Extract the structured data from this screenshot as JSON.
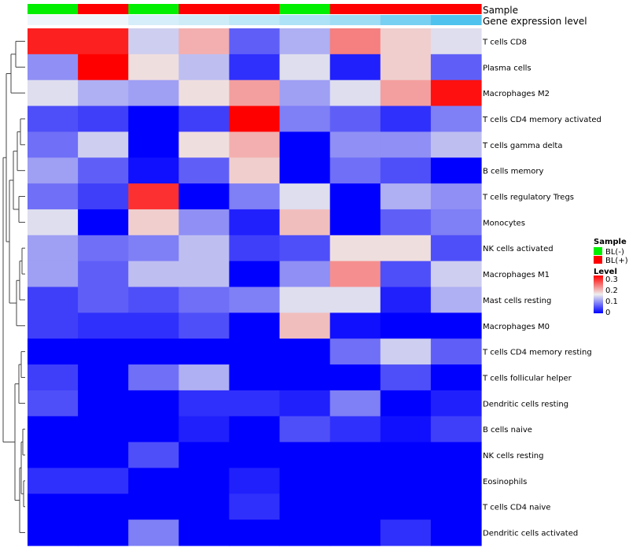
{
  "chart_data": {
    "type": "heatmap",
    "annotation_tracks": [
      "Sample",
      "Gene expression level"
    ],
    "sample_groups": [
      "BL(-)",
      "BL(+)",
      "BL(-)",
      "BL(+)",
      "BL(+)",
      "BL(-)",
      "BL(+)",
      "BL(+)",
      "BL(+)"
    ],
    "expression_level_track": [
      0.0,
      0.0,
      0.15,
      0.2,
      0.3,
      0.4,
      0.5,
      0.75,
      1.0
    ],
    "rows": [
      "T cells CD8",
      "Plasma cells",
      "Macrophages M2",
      "T cells CD4 memory activated",
      "T cells gamma delta",
      "B cells memory",
      "T cells regulatory  Tregs",
      "Monocytes",
      "NK cells activated",
      "Macrophages M1",
      "Mast cells resting",
      "Macrophages M0",
      "T cells CD4 memory resting",
      "T cells follicular helper",
      "Dendritic cells resting",
      "B cells naive",
      "NK cells resting",
      "Eosinophils",
      "T cells CD4 naive",
      "Dendritic cells activated"
    ],
    "values": [
      [
        0.28,
        0.28,
        0.13,
        0.19,
        0.06,
        0.11,
        0.22,
        0.17,
        0.14
      ],
      [
        0.09,
        0.3,
        0.16,
        0.12,
        0.03,
        0.14,
        0.02,
        0.17,
        0.06
      ],
      [
        0.14,
        0.11,
        0.1,
        0.16,
        0.2,
        0.1,
        0.14,
        0.2,
        0.29
      ],
      [
        0.05,
        0.04,
        0.0,
        0.04,
        0.3,
        0.08,
        0.06,
        0.03,
        0.08
      ],
      [
        0.07,
        0.13,
        0.0,
        0.16,
        0.19,
        0.0,
        0.09,
        0.09,
        0.12
      ],
      [
        0.1,
        0.06,
        0.01,
        0.06,
        0.17,
        0.0,
        0.07,
        0.05,
        0.0
      ],
      [
        0.07,
        0.04,
        0.27,
        0.0,
        0.08,
        0.14,
        0.0,
        0.11,
        0.09
      ],
      [
        0.14,
        0.0,
        0.17,
        0.09,
        0.02,
        0.18,
        0.0,
        0.06,
        0.08
      ],
      [
        0.1,
        0.07,
        0.08,
        0.12,
        0.04,
        0.05,
        0.16,
        0.16,
        0.05
      ],
      [
        0.1,
        0.06,
        0.12,
        0.12,
        0.0,
        0.09,
        0.21,
        0.05,
        0.13
      ],
      [
        0.04,
        0.06,
        0.05,
        0.07,
        0.08,
        0.14,
        0.14,
        0.02,
        0.11
      ],
      [
        0.04,
        0.03,
        0.03,
        0.05,
        0.0,
        0.18,
        0.01,
        0.0,
        0.0
      ],
      [
        0.0,
        0.0,
        0.0,
        0.0,
        0.0,
        0.0,
        0.07,
        0.13,
        0.06
      ],
      [
        0.04,
        0.0,
        0.07,
        0.11,
        0.0,
        0.0,
        0.0,
        0.05,
        0.0
      ],
      [
        0.05,
        0.0,
        0.0,
        0.03,
        0.03,
        0.02,
        0.08,
        0.0,
        0.02
      ],
      [
        0.0,
        0.0,
        0.0,
        0.02,
        0.0,
        0.05,
        0.03,
        0.01,
        0.04
      ],
      [
        0.0,
        0.0,
        0.05,
        0.0,
        0.0,
        0.0,
        0.0,
        0.0,
        0.0
      ],
      [
        0.03,
        0.03,
        0.0,
        0.0,
        0.02,
        0.0,
        0.0,
        0.0,
        0.0
      ],
      [
        0.0,
        0.0,
        0.0,
        0.0,
        0.03,
        0.0,
        0.0,
        0.0,
        0.0
      ],
      [
        0.0,
        0.0,
        0.08,
        0.0,
        0.0,
        0.0,
        0.0,
        0.03,
        0.0
      ]
    ],
    "color_scale": {
      "min": 0.0,
      "max": 0.3,
      "low": "#0000ff",
      "mid": "#eeeeee",
      "high": "#ff0000"
    },
    "legend": {
      "sample_title": "Sample",
      "sample_entries": [
        {
          "label": "BL(-)",
          "color": "#00ee00"
        },
        {
          "label": "BL(+)",
          "color": "#ff0000"
        }
      ],
      "level_title": "Level",
      "level_ticks": [
        "0.3",
        "0.2",
        "0.1",
        "0"
      ]
    },
    "track_colors": {
      "expr_low": "#eef6fb",
      "expr_high": "#4fc3ee"
    },
    "row_dendrogram": "left",
    "grid": false
  }
}
